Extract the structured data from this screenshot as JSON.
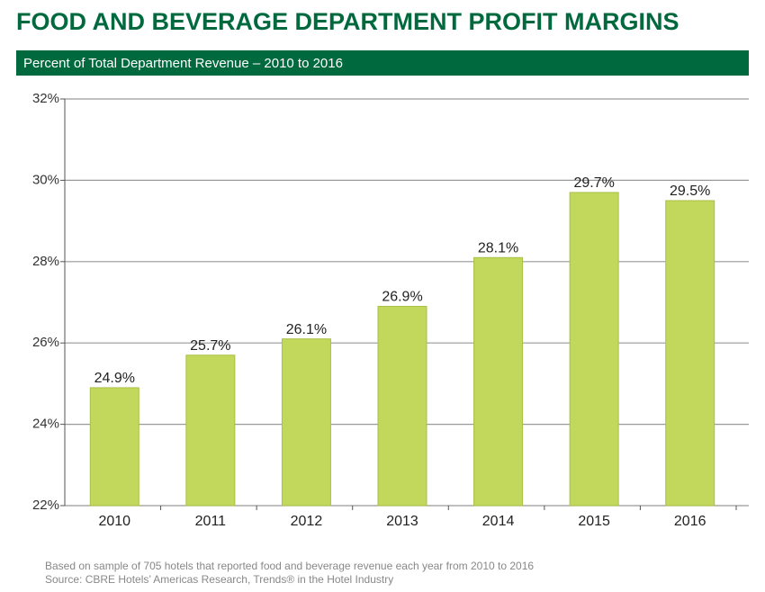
{
  "chart_data": {
    "type": "bar",
    "title": "FOOD AND BEVERAGE DEPARTMENT PROFIT MARGINS",
    "subtitle": "Percent of Total Department Revenue – 2010 to 2016",
    "categories": [
      "2010",
      "2011",
      "2012",
      "2013",
      "2014",
      "2015",
      "2016"
    ],
    "values": [
      24.9,
      25.7,
      26.1,
      26.9,
      28.1,
      29.7,
      29.5
    ],
    "value_labels": [
      "24.9%",
      "25.7%",
      "26.1%",
      "26.9%",
      "28.1%",
      "29.7%",
      "29.5%"
    ],
    "color": "#c2d85c",
    "ylim": [
      22,
      32
    ],
    "yticks": [
      {
        "value": 22,
        "label": "22%"
      },
      {
        "value": 24,
        "label": "24%"
      },
      {
        "value": 26,
        "label": "26%"
      },
      {
        "value": 28,
        "label": "28%"
      },
      {
        "value": 30,
        "label": "30%"
      },
      {
        "value": 32,
        "label": "32%"
      }
    ],
    "grid": true,
    "notes": [
      "Based on sample of 705 hotels that reported food and beverage revenue each year from 2010 to 2016",
      "Source: CBRE Hotels’ Americas Research, Trends® in the Hotel Industry"
    ]
  }
}
